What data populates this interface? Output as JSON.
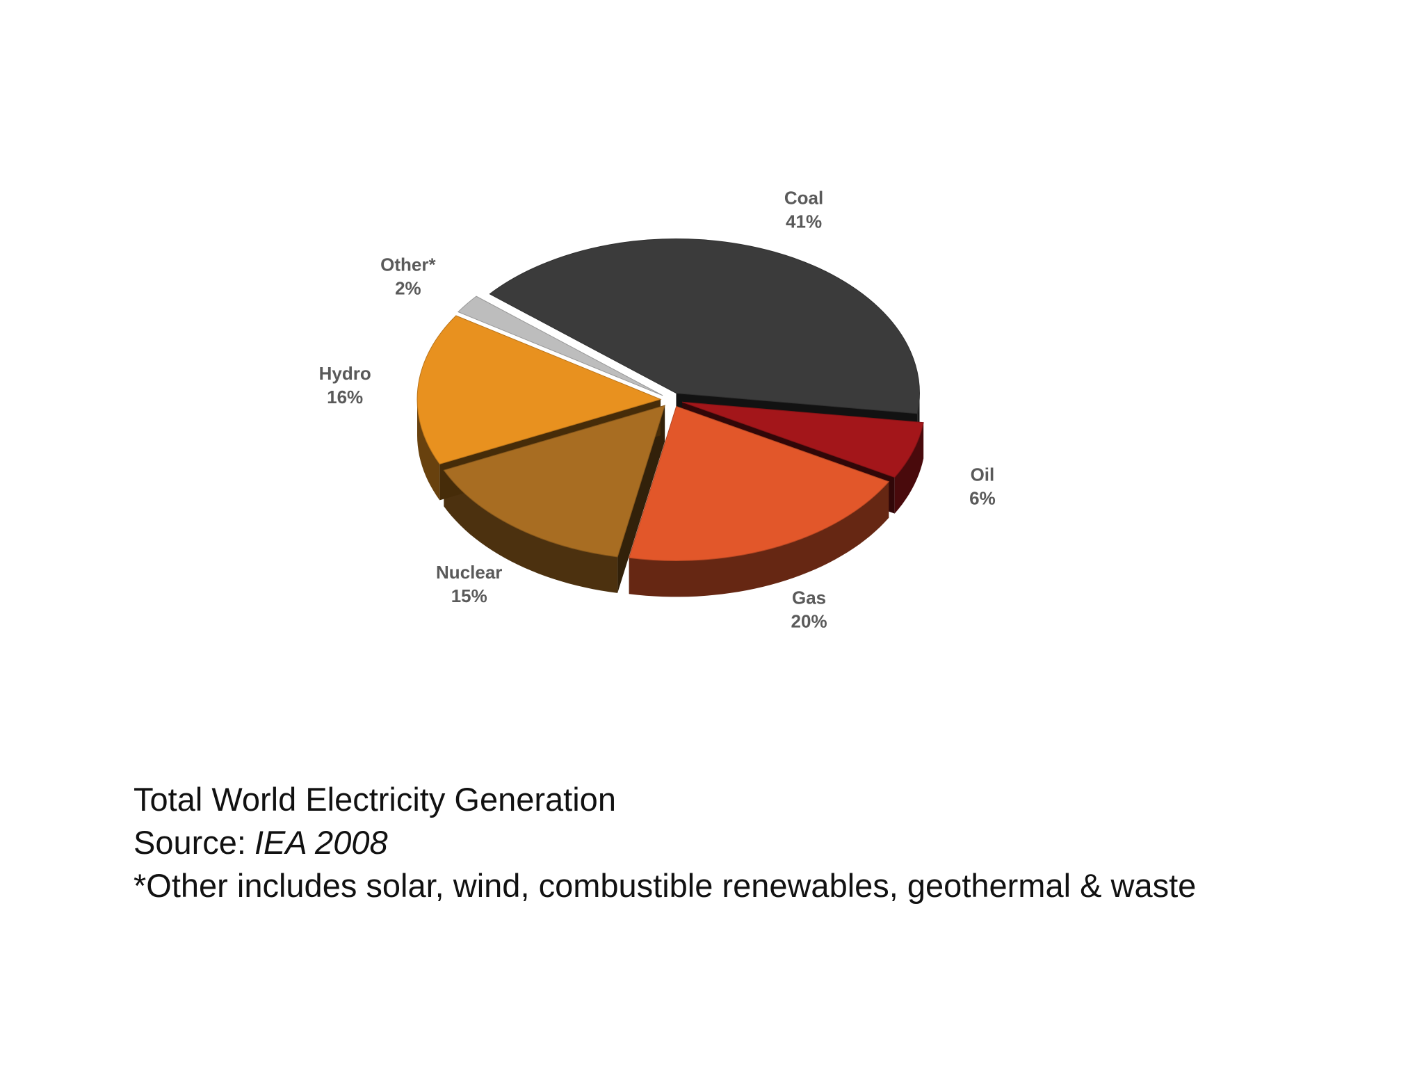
{
  "chart_data": {
    "type": "pie",
    "title": "Total World Electricity Generation",
    "source_label": "Source:",
    "source": "IEA 2008",
    "note": "*Other includes solar, wind, combustible renewables, geothermal & waste",
    "categories": [
      "Coal",
      "Oil",
      "Gas",
      "Nuclear",
      "Hydro",
      "Other*"
    ],
    "values": [
      41,
      6,
      20,
      15,
      16,
      2
    ],
    "value_labels": [
      "41%",
      "6%",
      "20%",
      "15%",
      "16%",
      "2%"
    ],
    "colors": [
      "#3b3b3b",
      "#a3161a",
      "#e2572a",
      "#a86d22",
      "#e8911f",
      "#bdbdbd"
    ]
  }
}
